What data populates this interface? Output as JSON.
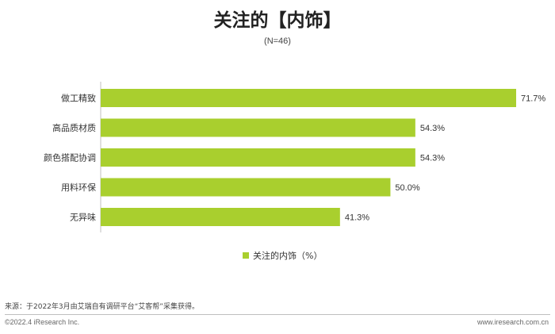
{
  "chart_data": {
    "type": "bar",
    "orientation": "horizontal",
    "title": "关注的【内饰】",
    "subtitle": "(N=46)",
    "categories": [
      "做工精致",
      "高品质材质",
      "颜色搭配协调",
      "用料环保",
      "无异味"
    ],
    "series": [
      {
        "name": "关注的内饰（%）",
        "values": [
          71.7,
          54.3,
          54.3,
          50.0,
          41.3
        ],
        "labels": [
          "71.7%",
          "54.3%",
          "54.3%",
          "50.0%",
          "41.3%"
        ]
      }
    ],
    "xlim": [
      0,
      71.7
    ],
    "grid": false,
    "legend_position": "bottom-center",
    "colors": {
      "bar": "#A9CF2E",
      "axis": "#bfbfbf",
      "text": "#333333"
    }
  },
  "footer": {
    "source": "来源：于2022年3月由艾瑞自有调研平台“艾客帮”采集获得。",
    "copyright": "©2022.4 iResearch Inc.",
    "website": "www.iresearch.com.cn"
  }
}
